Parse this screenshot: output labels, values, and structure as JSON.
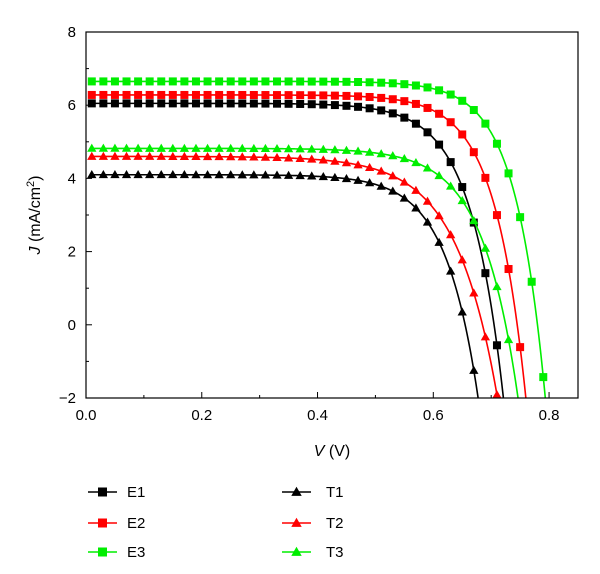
{
  "chart_data": {
    "type": "line",
    "xlabel": {
      "var": "V",
      "unit": " (V)"
    },
    "ylabel": {
      "var": "J",
      "unit_pre": " (mA/cm",
      "unit_sup": "2",
      "unit_post": ")"
    },
    "xlim": [
      0,
      0.85
    ],
    "ylim": [
      -2,
      8
    ],
    "xticks": [
      0.0,
      0.2,
      0.4,
      0.6,
      0.8
    ],
    "xtick_labels": [
      "0.0",
      "0.2",
      "0.4",
      "0.6",
      "0.8"
    ],
    "yticks": [
      -2,
      0,
      2,
      4,
      6,
      8
    ],
    "ytick_labels": [
      "−2",
      "0",
      "2",
      "4",
      "6",
      "8"
    ],
    "grid": false,
    "legend_position": "below-plot",
    "series": [
      {
        "name": "E1",
        "color": "#000000",
        "marker": "square",
        "jsc": 6.05,
        "voc": 0.705,
        "n": 2.2,
        "step": 0.02
      },
      {
        "name": "E2",
        "color": "#ff0000",
        "marker": "square",
        "jsc": 6.28,
        "voc": 0.745,
        "n": 2.1,
        "step": 0.02
      },
      {
        "name": "E3",
        "color": "#00ee00",
        "marker": "square",
        "jsc": 6.65,
        "voc": 0.78,
        "n": 2.0,
        "step": 0.02
      },
      {
        "name": "T1",
        "color": "#000000",
        "marker": "triangle",
        "jsc": 4.1,
        "voc": 0.655,
        "n": 2.2,
        "step": 0.02
      },
      {
        "name": "T2",
        "color": "#ff0000",
        "marker": "triangle",
        "jsc": 4.6,
        "voc": 0.685,
        "n": 2.8,
        "step": 0.02
      },
      {
        "name": "T3",
        "color": "#00ee00",
        "marker": "triangle",
        "jsc": 4.82,
        "voc": 0.725,
        "n": 2.4,
        "step": 0.02
      }
    ]
  }
}
